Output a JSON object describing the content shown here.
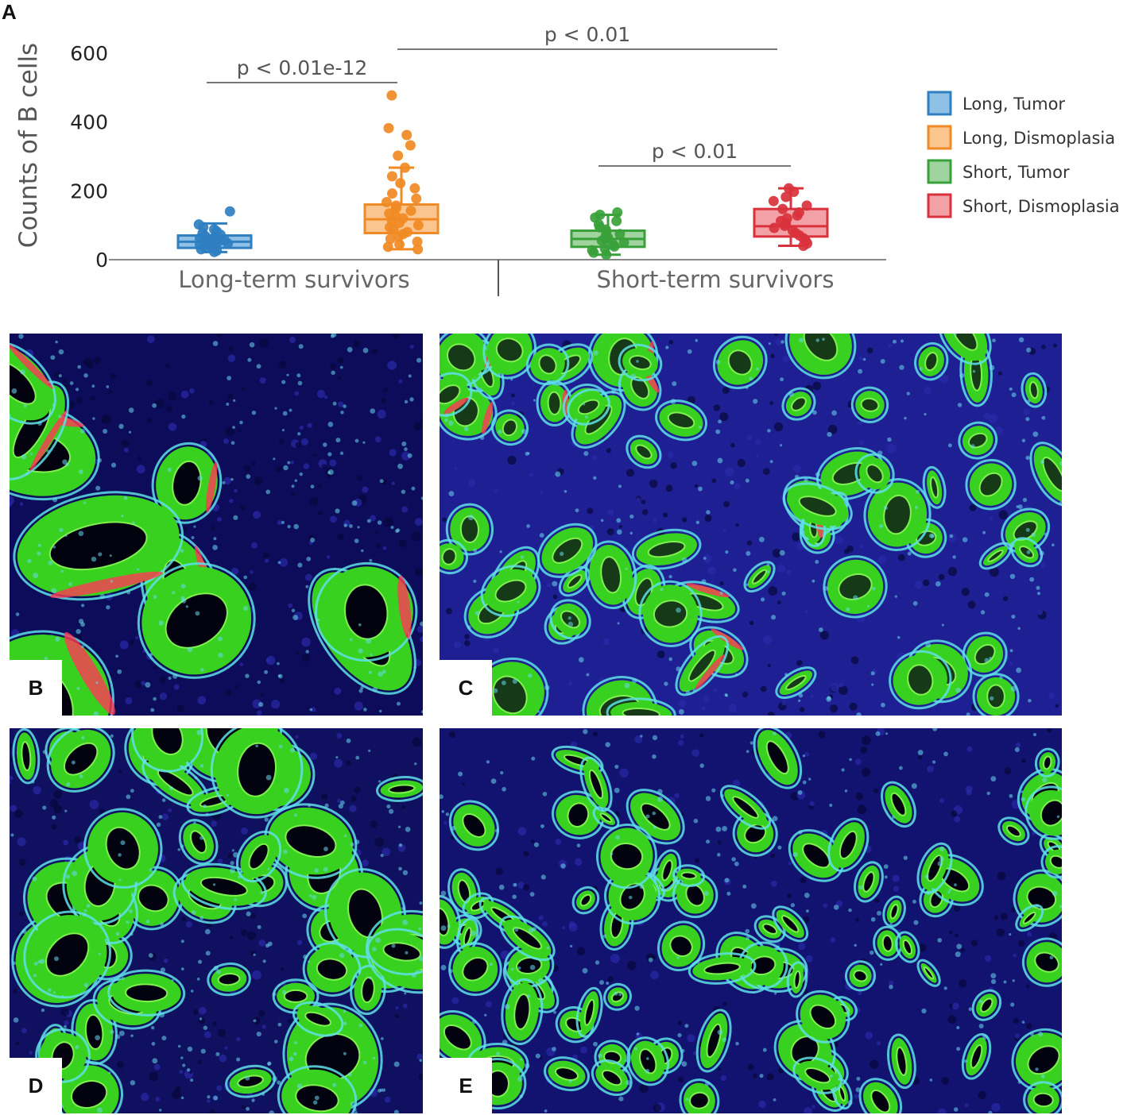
{
  "panel_labels": {
    "a": "A",
    "b": "B",
    "c": "C",
    "d": "D",
    "e": "E"
  },
  "chart_data": {
    "type": "box",
    "ylabel": "Counts of B cells",
    "ylim": [
      0,
      600
    ],
    "yticks": [
      0,
      200,
      400,
      600
    ],
    "groups": [
      "Long-term survivors",
      "Short-term survivors"
    ],
    "legend_position": "right",
    "series": [
      {
        "name": "Long, Tumor",
        "group": 0,
        "color": "#2f7fc1",
        "fill": "#8fc0e6",
        "whisker_low": 20,
        "q1": 32,
        "median": 50,
        "q3": 68,
        "whisker_high": 103,
        "points": [
          20,
          24,
          28,
          31,
          35,
          38,
          42,
          45,
          48,
          50,
          52,
          55,
          58,
          60,
          63,
          66,
          70,
          75,
          80,
          86,
          92,
          100,
          138
        ]
      },
      {
        "name": "Long, Dismoplasia",
        "group": 0,
        "color": "#f08a24",
        "fill": "#fbc58f",
        "whisker_low": 28,
        "q1": 75,
        "median": 115,
        "q3": 158,
        "whisker_high": 265,
        "points": [
          28,
          35,
          42,
          50,
          58,
          65,
          72,
          78,
          85,
          92,
          98,
          105,
          112,
          118,
          125,
          132,
          140,
          148,
          155,
          165,
          175,
          190,
          205,
          220,
          240,
          265,
          300,
          330,
          360,
          380,
          475
        ]
      },
      {
        "name": "Short, Tumor",
        "group": 1,
        "color": "#3aa13a",
        "fill": "#9fd49f",
        "whisker_low": 12,
        "q1": 35,
        "median": 58,
        "q3": 82,
        "whisker_high": 128,
        "points": [
          12,
          18,
          25,
          30,
          36,
          42,
          48,
          53,
          58,
          62,
          67,
          72,
          78,
          85,
          92,
          100,
          110,
          120,
          128,
          135
        ]
      },
      {
        "name": "Short, Dismoplasia",
        "group": 1,
        "color": "#d9323c",
        "fill": "#f2a1a6",
        "whisker_low": 38,
        "q1": 65,
        "median": 95,
        "q3": 145,
        "whisker_high": 205,
        "points": [
          38,
          45,
          52,
          60,
          68,
          75,
          82,
          90,
          96,
          102,
          110,
          118,
          126,
          135,
          145,
          155,
          168,
          180,
          195,
          205
        ]
      }
    ],
    "annotations": [
      {
        "from_series": 0,
        "to_series": 1,
        "text": "p < 0.01e-12"
      },
      {
        "from_series": 1,
        "to_series": 3,
        "text": "p < 0.01"
      },
      {
        "from_series": 2,
        "to_series": 3,
        "text": "p < 0.01"
      }
    ]
  }
}
